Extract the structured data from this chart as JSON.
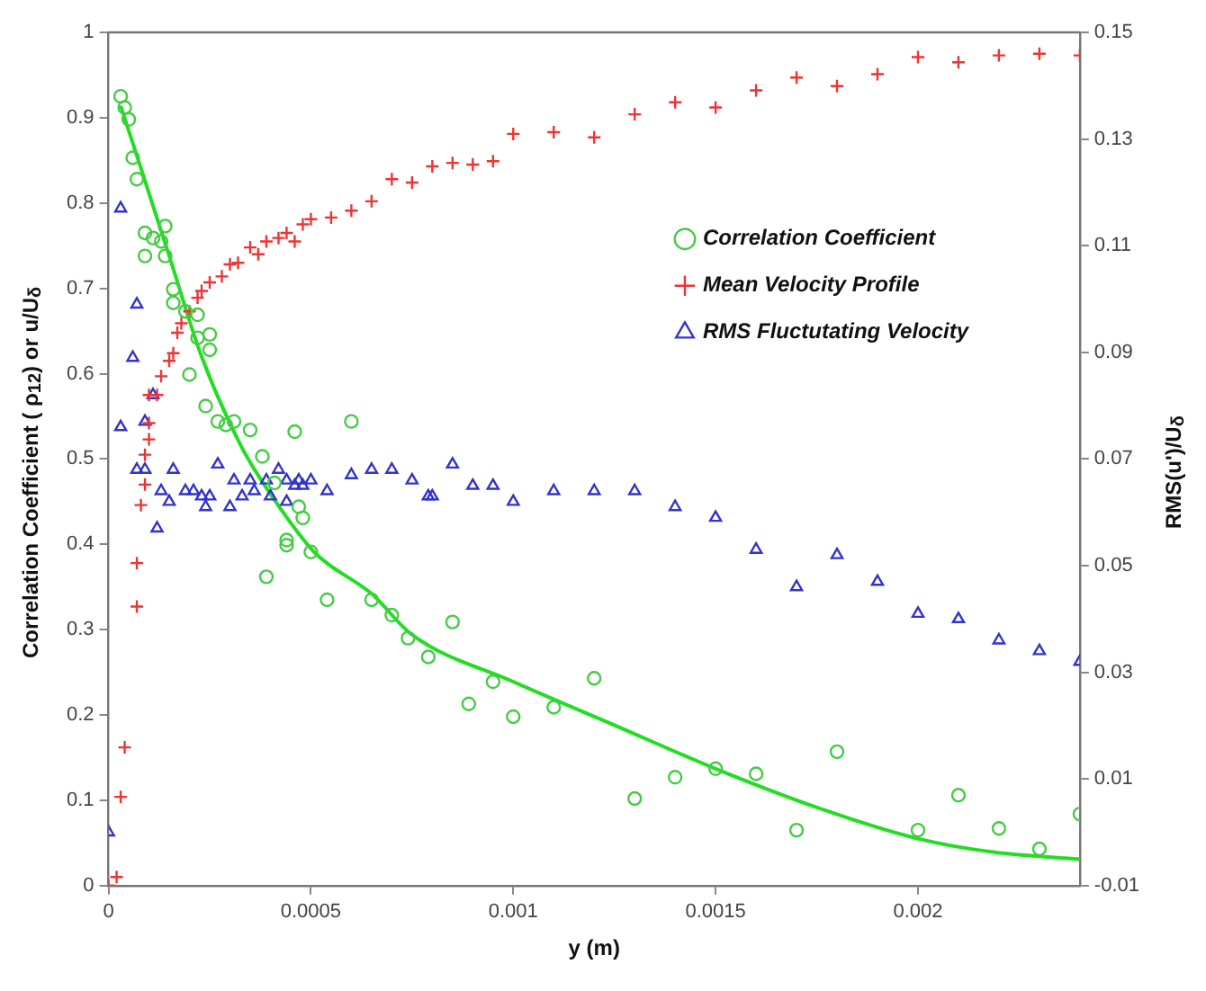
{
  "chart_data": {
    "type": "scatter",
    "xlabel": "y (m)",
    "ylabel": "Correlation Coefficient ( ρ$_{12}$) or u/U$_{δ}$",
    "y2label": "RMS(u')/U$_{δ}$",
    "xlim": [
      0,
      0.0024
    ],
    "xticks": [
      0,
      0.0005,
      0.001,
      0.0015,
      0.002
    ],
    "ylim": [
      0,
      1
    ],
    "yticks": [
      0,
      0.1,
      0.2,
      0.3,
      0.4,
      0.5,
      0.6,
      0.7,
      0.8,
      0.9,
      1
    ],
    "y2lim": [
      -0.01,
      0.15
    ],
    "y2ticks": [
      -0.01,
      0.01,
      0.03,
      0.05,
      0.07,
      0.09,
      0.11,
      0.13,
      0.15
    ],
    "grid": false,
    "legend": "right",
    "series": [
      {
        "name": "Correlation Coefficient",
        "color": "#44cc44",
        "marker": "circle",
        "x": [
          3e-05,
          4e-05,
          5e-05,
          6e-05,
          7e-05,
          9e-05,
          9e-05,
          0.00011,
          0.00014,
          0.00013,
          0.00014,
          0.00016,
          0.00016,
          0.00019,
          0.00022,
          0.00022,
          0.00025,
          0.00025,
          0.0002,
          0.00024,
          0.00027,
          0.00029,
          0.00031,
          0.00035,
          0.00046,
          0.0006,
          0.00038,
          0.00041,
          0.00047,
          0.00048,
          0.00044,
          0.00044,
          0.00039,
          0.0005,
          0.00054,
          0.00065,
          0.0007,
          0.00074,
          0.00079,
          0.00085,
          0.00089,
          0.00095,
          0.001,
          0.0011,
          0.0012,
          0.0013,
          0.0014,
          0.0015,
          0.0016,
          0.0017,
          0.0018,
          0.002,
          0.0021,
          0.0022,
          0.0023,
          0.0024
        ],
        "values": [
          0.925,
          0.912,
          0.898,
          0.853,
          0.828,
          0.765,
          0.738,
          0.759,
          0.773,
          0.755,
          0.738,
          0.699,
          0.683,
          0.673,
          0.669,
          0.642,
          0.646,
          0.628,
          0.599,
          0.562,
          0.544,
          0.54,
          0.544,
          0.534,
          0.532,
          0.544,
          0.503,
          0.472,
          0.444,
          0.431,
          0.405,
          0.399,
          0.362,
          0.391,
          0.335,
          0.335,
          0.317,
          0.29,
          0.268,
          0.309,
          0.213,
          0.239,
          0.198,
          0.209,
          0.243,
          0.102,
          0.127,
          0.137,
          0.131,
          0.065,
          0.157,
          0.065,
          0.106,
          0.067,
          0.043,
          0.084
        ]
      },
      {
        "name": "Mean Velocity Profile",
        "color": "#ee3333",
        "marker": "cross",
        "x": [
          0,
          2e-05,
          3e-05,
          4e-05,
          7e-05,
          7e-05,
          8e-05,
          9e-05,
          9e-05,
          0.0001,
          0.0001,
          0.0001,
          0.00012,
          0.00013,
          0.00015,
          0.00016,
          0.00017,
          0.00018,
          0.0002,
          0.00022,
          0.00023,
          0.00025,
          0.00028,
          0.0003,
          0.00032,
          0.00035,
          0.00037,
          0.00039,
          0.00042,
          0.00044,
          0.00046,
          0.00048,
          0.0005,
          0.00055,
          0.0006,
          0.00065,
          0.0007,
          0.00075,
          0.0008,
          0.00085,
          0.0009,
          0.00095,
          0.001,
          0.0011,
          0.0012,
          0.0013,
          0.0014,
          0.0015,
          0.0016,
          0.0017,
          0.0018,
          0.0019,
          0.002,
          0.0021,
          0.0022,
          0.0023,
          0.0024
        ],
        "values": [
          0,
          0.01,
          0.104,
          0.162,
          0.327,
          0.378,
          0.446,
          0.47,
          0.505,
          0.523,
          0.542,
          0.575,
          0.575,
          0.597,
          0.615,
          0.624,
          0.648,
          0.659,
          0.673,
          0.689,
          0.697,
          0.707,
          0.714,
          0.728,
          0.73,
          0.748,
          0.74,
          0.755,
          0.759,
          0.765,
          0.755,
          0.775,
          0.781,
          0.783,
          0.791,
          0.802,
          0.828,
          0.824,
          0.843,
          0.847,
          0.845,
          0.849,
          0.881,
          0.883,
          0.877,
          0.904,
          0.918,
          0.912,
          0.932,
          0.947,
          0.937,
          0.951,
          0.971,
          0.965,
          0.973,
          0.975,
          0.973
        ]
      },
      {
        "name": "RMS Fluctutating Velocity",
        "color": "#3333cc",
        "marker": "triangle",
        "axis": "y2",
        "x": [
          0,
          3e-05,
          7e-05,
          6e-05,
          0.00011,
          3e-05,
          9e-05,
          7e-05,
          9e-05,
          0.00012,
          0.00013,
          0.00015,
          0.00016,
          0.00019,
          0.00021,
          0.00023,
          0.00024,
          0.00025,
          0.00027,
          0.0003,
          0.00031,
          0.00033,
          0.00035,
          0.00036,
          0.00039,
          0.0004,
          0.00042,
          0.00044,
          0.00044,
          0.00046,
          0.00047,
          0.00048,
          0.0005,
          0.00054,
          0.0006,
          0.00065,
          0.0007,
          0.00075,
          0.00079,
          0.0008,
          0.00085,
          0.0009,
          0.00095,
          0.001,
          0.0011,
          0.0012,
          0.0013,
          0.0014,
          0.0015,
          0.0016,
          0.0017,
          0.0018,
          0.0019,
          0.002,
          0.0021,
          0.0022,
          0.0023,
          0.0024
        ],
        "values": [
          0.0,
          0.117,
          0.099,
          0.089,
          0.082,
          0.076,
          0.077,
          0.068,
          0.068,
          0.057,
          0.064,
          0.062,
          0.068,
          0.064,
          0.064,
          0.063,
          0.061,
          0.063,
          0.069,
          0.061,
          0.066,
          0.063,
          0.066,
          0.064,
          0.066,
          0.063,
          0.068,
          0.062,
          0.066,
          0.065,
          0.066,
          0.065,
          0.066,
          0.064,
          0.067,
          0.068,
          0.068,
          0.066,
          0.063,
          0.063,
          0.069,
          0.065,
          0.065,
          0.062,
          0.064,
          0.064,
          0.064,
          0.061,
          0.059,
          0.053,
          0.046,
          0.052,
          0.047,
          0.041,
          0.04,
          0.036,
          0.034,
          0.032
        ]
      },
      {
        "type": "line",
        "color": "#22dd22",
        "marker": "none",
        "line_style": "solid",
        "x": [
          3e-05,
          0.00015,
          0.00023,
          0.00033,
          0.00041,
          0.00051,
          0.00065,
          0.00075,
          0.001,
          0.00126,
          0.0015,
          0.00176,
          0.002,
          0.00219,
          0.0024
        ],
        "values": [
          0.914,
          0.738,
          0.62,
          0.513,
          0.452,
          0.39,
          0.342,
          0.294,
          0.239,
          0.186,
          0.137,
          0.09,
          0.055,
          0.039,
          0.031
        ]
      }
    ]
  }
}
